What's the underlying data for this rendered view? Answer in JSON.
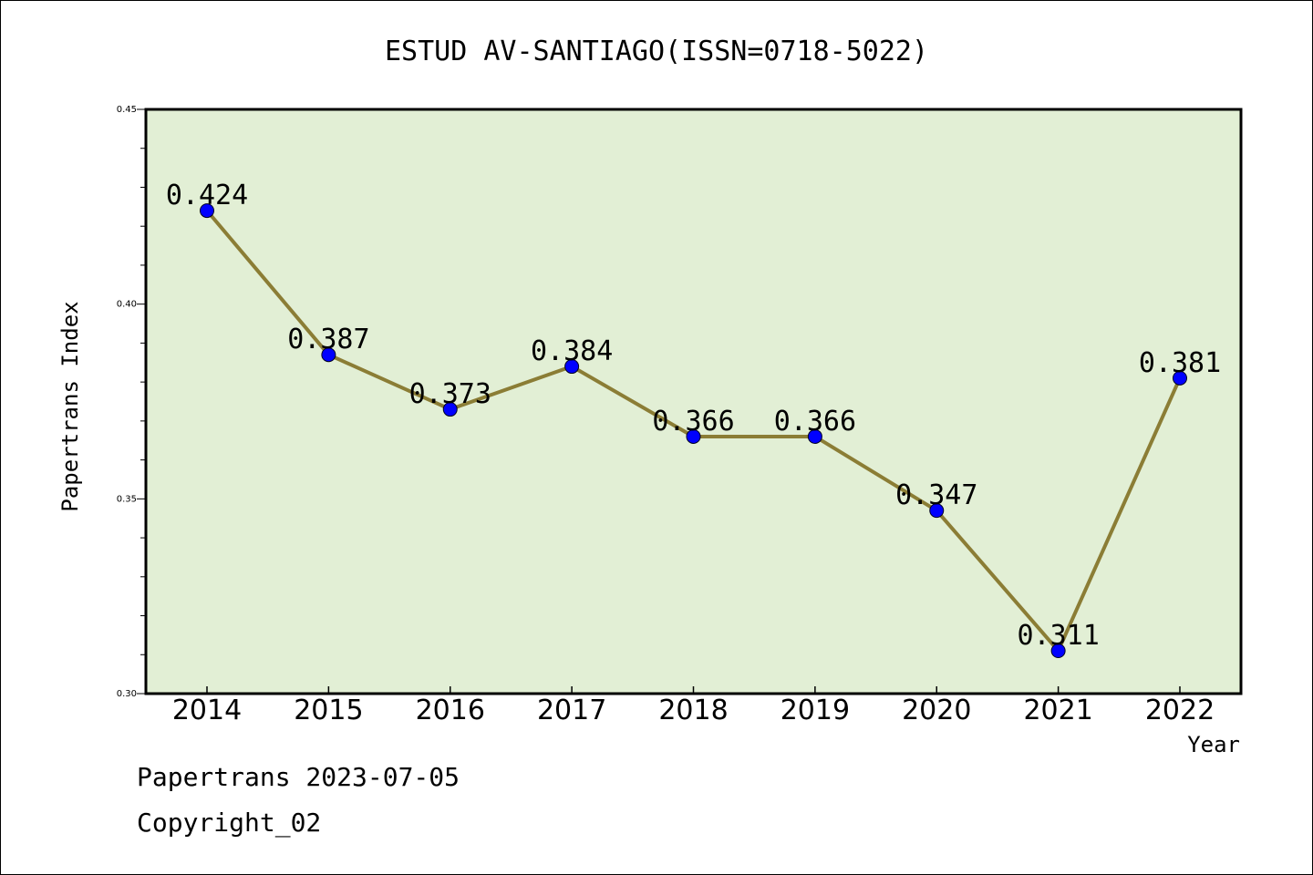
{
  "chart_data": {
    "type": "line",
    "title": "ESTUD AV-SANTIAGO(ISSN=0718-5022)",
    "xlabel": "Year",
    "ylabel": "Papertrans Index",
    "categories": [
      "2014",
      "2015",
      "2016",
      "2017",
      "2018",
      "2019",
      "2020",
      "2021",
      "2022"
    ],
    "series": [
      {
        "values": [
          0.424,
          0.387,
          0.373,
          0.384,
          0.366,
          0.366,
          0.347,
          0.311,
          0.381
        ],
        "labels": [
          "0.424",
          "0.387",
          "0.373",
          "0.384",
          "0.366",
          "0.366",
          "0.347",
          "0.311",
          "0.381"
        ]
      }
    ],
    "ylim": [
      0.3,
      0.45
    ],
    "yticks": [
      "0.30",
      "0.35",
      "0.40",
      "0.45"
    ],
    "grid": false,
    "colors": {
      "plot_background": "#e2efd5",
      "line": "#8b7d35",
      "marker": "#0000ff"
    }
  },
  "footer": {
    "line1": "Papertrans 2023-07-05",
    "line2": "Copyright_02"
  }
}
